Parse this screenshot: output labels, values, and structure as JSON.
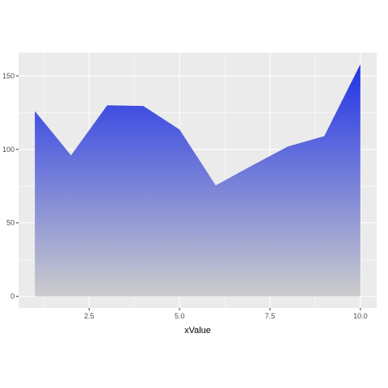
{
  "chart_data": {
    "type": "area",
    "x": [
      1,
      2,
      3,
      4,
      5,
      6,
      7,
      8,
      9,
      10
    ],
    "y": [
      126,
      96,
      130,
      129.5,
      113.5,
      75.5,
      89,
      102,
      109,
      158
    ],
    "xlabel": "xValue",
    "ylabel": "",
    "xlim": [
      0.55,
      10.45
    ],
    "ylim": [
      -7.9,
      165.9
    ],
    "x_ticks": [
      2.5,
      5.0,
      7.5,
      10.0
    ],
    "x_tick_labels": [
      "2.5",
      "5.0",
      "7.5",
      "10.0"
    ],
    "y_ticks": [
      0,
      50,
      100,
      150
    ],
    "y_tick_labels": [
      "0",
      "50",
      "100",
      "150"
    ],
    "grid": true,
    "legend": "none",
    "colors": {
      "panel_background": "#ebebeb",
      "grid_major": "#ffffff",
      "fill_top": "#1f32e6",
      "fill_bottom": "#cccccc",
      "tick_text": "#4d4d4d",
      "tick_mark": "#333333"
    }
  }
}
